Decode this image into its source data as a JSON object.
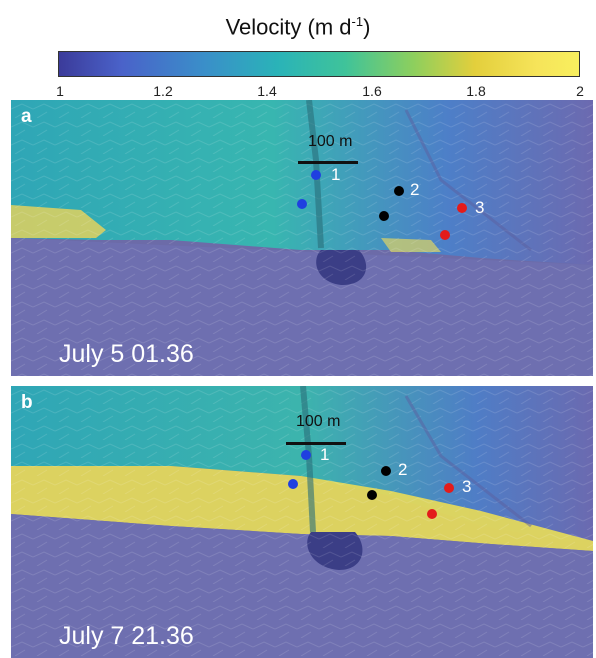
{
  "colorbar": {
    "title": "Velocity (m d",
    "title_sup": "-1",
    "title_end": ")",
    "ticks": [
      "1",
      "1.2",
      "1.4",
      "1.6",
      "1.8",
      "2"
    ],
    "range": [
      1,
      2
    ],
    "colors": [
      "#3b3b9a",
      "#2ab3b8",
      "#f8ef5e"
    ]
  },
  "panels": [
    {
      "letter": "a",
      "date": "July 5 01.36",
      "scale": "100 m",
      "points": [
        {
          "label": "1",
          "color": "#1f3fe0"
        },
        {
          "label": "2",
          "color": "#000000"
        },
        {
          "label": "3",
          "color": "#e31b1b"
        }
      ]
    },
    {
      "letter": "b",
      "date": "July 7 21.36",
      "scale": "100 m",
      "points": [
        {
          "label": "1",
          "color": "#1f3fe0"
        },
        {
          "label": "2",
          "color": "#000000"
        },
        {
          "label": "3",
          "color": "#e31b1b"
        }
      ]
    }
  ]
}
